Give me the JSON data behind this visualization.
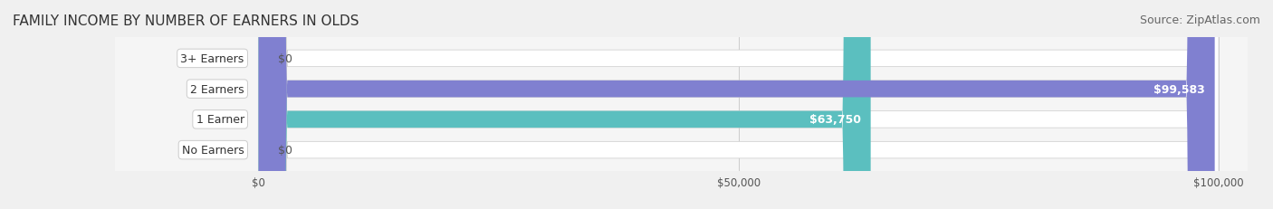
{
  "title": "FAMILY INCOME BY NUMBER OF EARNERS IN OLDS",
  "source": "Source: ZipAtlas.com",
  "categories": [
    "No Earners",
    "1 Earner",
    "2 Earners",
    "3+ Earners"
  ],
  "values": [
    0,
    63750,
    99583,
    0
  ],
  "xlim": [
    0,
    100000
  ],
  "bar_colors": [
    "#c9a0c8",
    "#5bbfbf",
    "#8080d0",
    "#f0a0b8"
  ],
  "bar_label_colors": [
    "#555555",
    "#ffffff",
    "#ffffff",
    "#555555"
  ],
  "bar_labels": [
    "$0",
    "$63,750",
    "$99,583",
    "$0"
  ],
  "label_bg_color": "#ffffff",
  "bar_height": 0.55,
  "bg_color": "#f5f5f5",
  "title_fontsize": 11,
  "source_fontsize": 9,
  "label_fontsize": 9,
  "tick_labels": [
    "$0",
    "$50,000",
    "$100,000"
  ],
  "tick_values": [
    0,
    50000,
    100000
  ]
}
